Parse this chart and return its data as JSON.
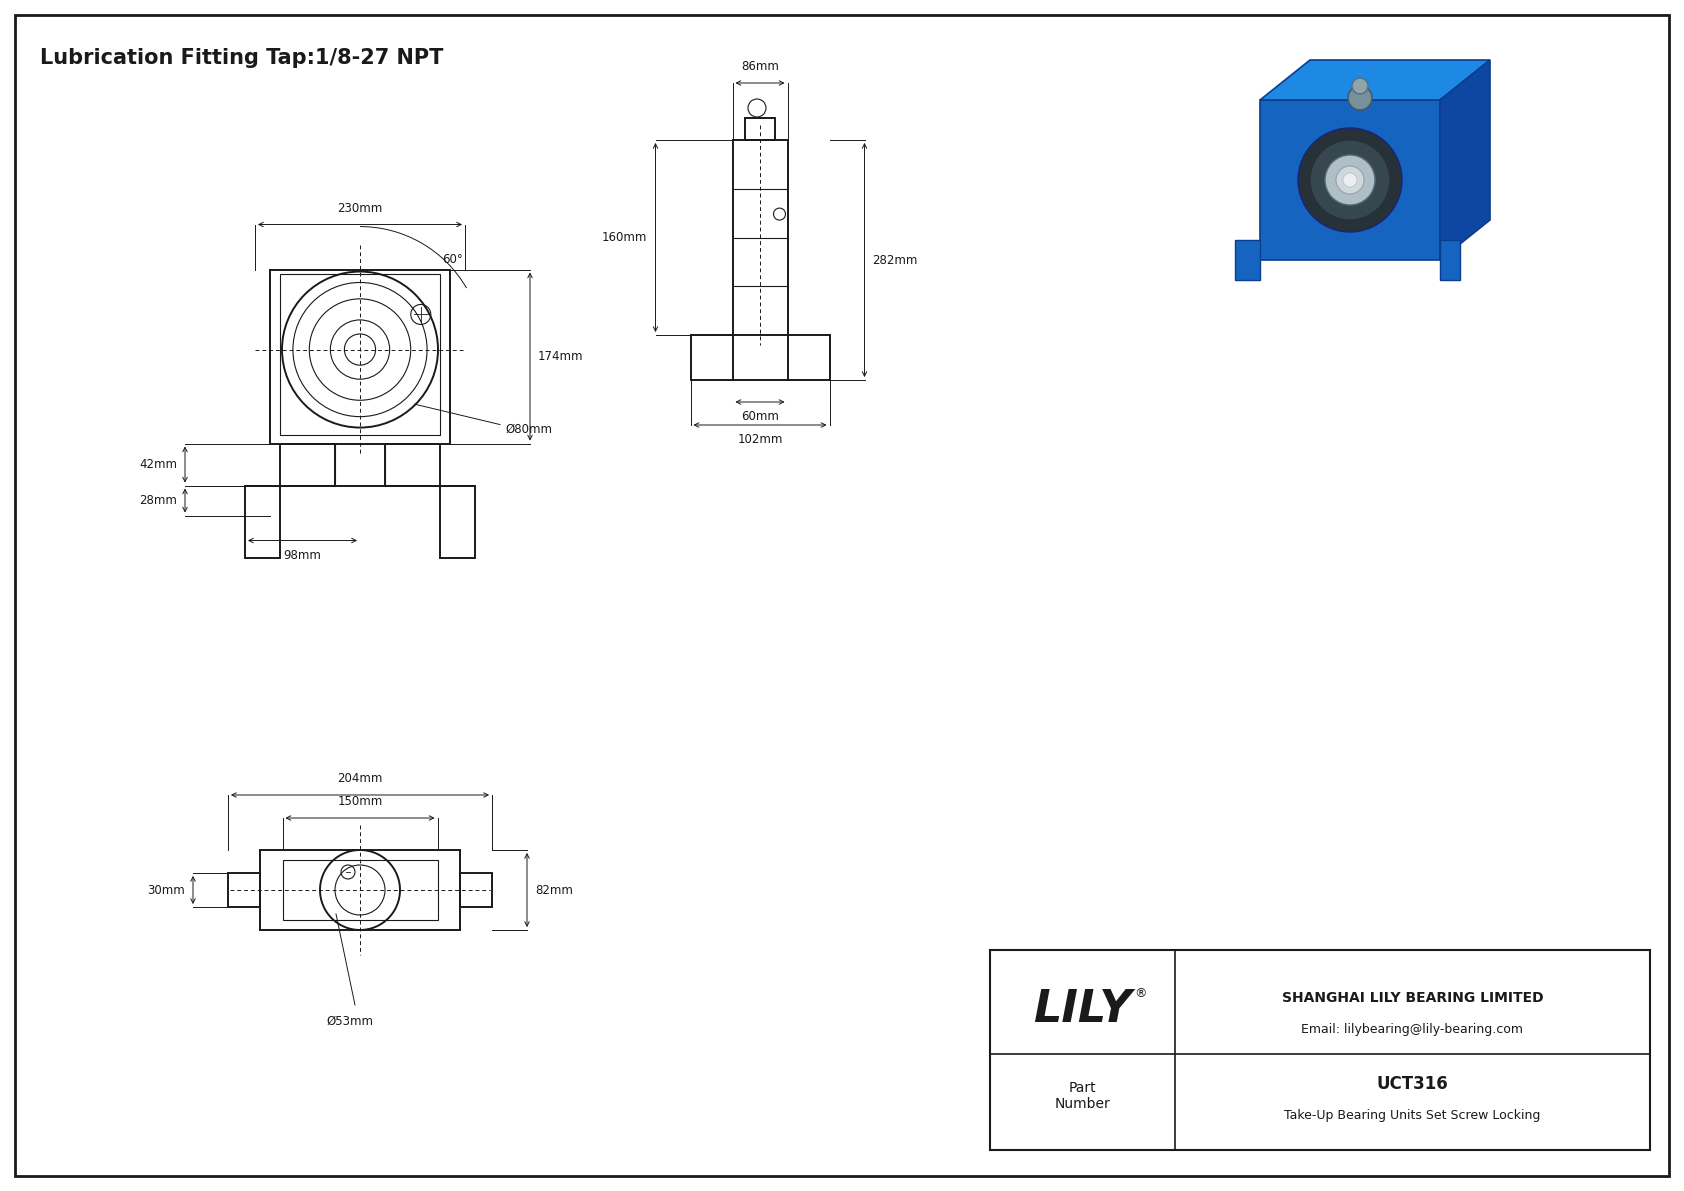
{
  "title": "Lubrication Fitting Tap:1/8-27 NPT",
  "bg_color": "#ffffff",
  "line_color": "#1a1a1a",
  "title_fontsize": 15,
  "dim_fontsize": 8.5,
  "company_name": "SHANGHAI LILY BEARING LIMITED",
  "company_email": "Email: lilybearing@lily-bearing.com",
  "part_number": "UCT316",
  "part_desc": "Take-Up Bearing Units Set Screw Locking",
  "lily_text": "LILY",
  "part_label": "Part\nNumber",
  "dimensions_front": {
    "width_230": "230mm",
    "height_174": "174mm",
    "height_42": "42mm",
    "height_28": "28mm",
    "width_98": "98mm",
    "dia_80": "Ø80mm",
    "angle_60": "60°"
  },
  "dimensions_side": {
    "width_86": "86mm",
    "height_160": "160mm",
    "height_282": "282mm",
    "width_60": "60mm",
    "width_102": "102mm"
  },
  "dimensions_bottom": {
    "width_204": "204mm",
    "width_150": "150mm",
    "height_82": "82mm",
    "height_30": "30mm",
    "dia_53": "Ø53mm"
  }
}
